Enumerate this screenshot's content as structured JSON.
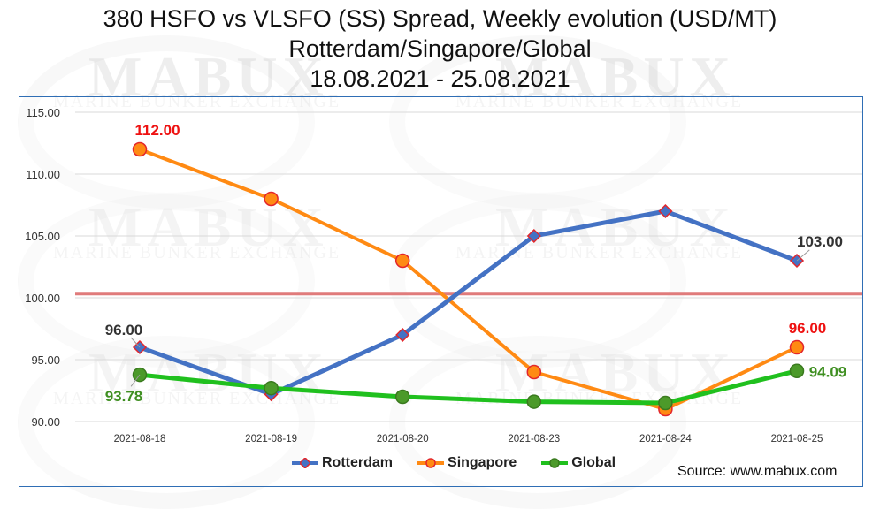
{
  "header": {
    "title_line1": "380 HSFO vs VLSFO (SS) Spread, Weekly evolution (USD/MT)",
    "title_line2": "Rotterdam/Singapore/Global",
    "title_line3": "18.08.2021 - 25.08.2021"
  },
  "watermark": {
    "brand": "MABUX",
    "tagline": "MARINE BUNKER EXCHANGE"
  },
  "source": "Source: www.mabux.com",
  "chart_data": {
    "type": "line",
    "title": "380 HSFO vs VLSFO (SS) Spread, Weekly evolution (USD/MT)",
    "subtitle": "Rotterdam/Singapore/Global 18.08.2021 - 25.08.2021",
    "categories": [
      "2021-08-18",
      "2021-08-19",
      "2021-08-20",
      "2021-08-23",
      "2021-08-24",
      "2021-08-25"
    ],
    "ylim": [
      90,
      115
    ],
    "yticks": [
      "115.00",
      "110.00",
      "105.00",
      "100.00",
      "95.00",
      "90.00"
    ],
    "reference_line": 100.3,
    "grid": true,
    "legend_position": "bottom",
    "series": [
      {
        "name": "Rotterdam",
        "color": "#4472c4",
        "marker": "diamond",
        "marker_fill": "#4472c4",
        "marker_edge": "#e3262b",
        "values": [
          96.0,
          92.2,
          97.0,
          105.0,
          107.0,
          103.0
        ],
        "labels": [
          {
            "index": 0,
            "text": "96.00"
          },
          {
            "index": 5,
            "text": "103.00"
          }
        ]
      },
      {
        "name": "Singapore",
        "color": "#ff8a13",
        "marker": "circle",
        "marker_fill": "#ff8a13",
        "marker_edge": "#e3262b",
        "values": [
          112.0,
          108.0,
          103.0,
          94.0,
          91.0,
          96.0
        ],
        "labels": [
          {
            "index": 0,
            "text": "112.00"
          },
          {
            "index": 5,
            "text": "96.00"
          }
        ]
      },
      {
        "name": "Global",
        "color": "#20c01e",
        "marker": "circle",
        "marker_fill": "#4c9a2a",
        "marker_edge": "#3a7a1e",
        "values": [
          93.78,
          92.7,
          92.0,
          91.6,
          91.5,
          94.09
        ],
        "labels": [
          {
            "index": 0,
            "text": "93.78"
          },
          {
            "index": 5,
            "text": "94.09"
          }
        ]
      }
    ],
    "label_colors": {
      "Rotterdam": "#333333",
      "Singapore": "#ee1111",
      "Global": "#3f8f21"
    }
  }
}
